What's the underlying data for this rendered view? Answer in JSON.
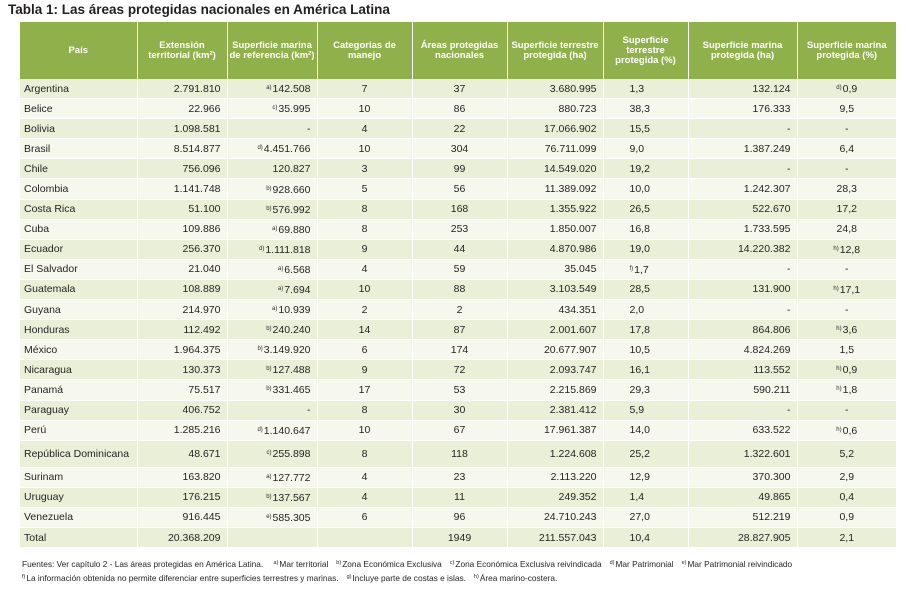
{
  "title": "Tabla 1: Las áreas protegidas nacionales en América Latina",
  "headers": [
    "País",
    "Extensión territorial (km²)",
    "Superficie marina de referencia (km²)",
    "Categorias de manejo",
    "Áreas protegidas nacionales",
    "Superficie terrestre protegida (ha)",
    "Superficie terrestre protegida (%)",
    "Superficie marina protegida (ha)",
    "Superficie marina protegida (%)"
  ],
  "rows": [
    {
      "pais": "Argentina",
      "ext": "2.791.810",
      "mar_note": "a)",
      "mar": "142.508",
      "cat": "7",
      "areas": "37",
      "ter_ha": "3.680.995",
      "ter_pct_note": "",
      "ter_pct": "1,3",
      "mar_ha": "132.124",
      "mar_pct_note": "d)",
      "mar_pct": "0,9"
    },
    {
      "pais": "Belice",
      "ext": "22.966",
      "mar_note": "c)",
      "mar": "35.995",
      "cat": "10",
      "areas": "86",
      "ter_ha": "880.723",
      "ter_pct_note": "",
      "ter_pct": "38,3",
      "mar_ha": "176.333",
      "mar_pct_note": "",
      "mar_pct": "9,5"
    },
    {
      "pais": "Bolivia",
      "ext": "1.098.581",
      "mar_note": "",
      "mar": "-",
      "cat": "4",
      "areas": "22",
      "ter_ha": "17.066.902",
      "ter_pct_note": "",
      "ter_pct": "15,5",
      "mar_ha": "-",
      "mar_pct_note": "",
      "mar_pct": "-"
    },
    {
      "pais": "Brasil",
      "ext": "8.514.877",
      "mar_note": "d)",
      "mar": "4.451.766",
      "cat": "10",
      "areas": "304",
      "ter_ha": "76.711.099",
      "ter_pct_note": "",
      "ter_pct": "9,0",
      "mar_ha": "1.387.249",
      "mar_pct_note": "",
      "mar_pct": "6,4"
    },
    {
      "pais": "Chile",
      "ext": "756.096",
      "mar_note": "",
      "mar": "120.827",
      "cat": "3",
      "areas": "99",
      "ter_ha": "14.549.020",
      "ter_pct_note": "",
      "ter_pct": "19,2",
      "mar_ha": "-",
      "mar_pct_note": "",
      "mar_pct": "-"
    },
    {
      "pais": "Colombia",
      "ext": "1.141.748",
      "mar_note": "b)",
      "mar": "928.660",
      "cat": "5",
      "areas": "56",
      "ter_ha": "11.389.092",
      "ter_pct_note": "",
      "ter_pct": "10,0",
      "mar_ha": "1.242.307",
      "mar_pct_note": "",
      "mar_pct": "28,3"
    },
    {
      "pais": "Costa Rica",
      "ext": "51.100",
      "mar_note": "b)",
      "mar": "576.992",
      "cat": "8",
      "areas": "168",
      "ter_ha": "1.355.922",
      "ter_pct_note": "",
      "ter_pct": "26,5",
      "mar_ha": "522.670",
      "mar_pct_note": "",
      "mar_pct": "17,2"
    },
    {
      "pais": "Cuba",
      "ext": "109.886",
      "mar_note": "a)",
      "mar": "69.880",
      "cat": "8",
      "areas": "253",
      "ter_ha": "1.850.007",
      "ter_pct_note": "",
      "ter_pct": "16,8",
      "mar_ha": "1.733.595",
      "mar_pct_note": "",
      "mar_pct": "24,8"
    },
    {
      "pais": "Ecuador",
      "ext": "256.370",
      "mar_note": "d)",
      "mar": "1.111.818",
      "cat": "9",
      "areas": "44",
      "ter_ha": "4.870.986",
      "ter_pct_note": "",
      "ter_pct": "19,0",
      "mar_ha": "14.220.382",
      "mar_pct_note": "h)",
      "mar_pct": "12,8"
    },
    {
      "pais": "El Salvador",
      "ext": "21.040",
      "mar_note": "a)",
      "mar": "6.568",
      "cat": "4",
      "areas": "59",
      "ter_ha": "35.045",
      "ter_pct_note": "f)",
      "ter_pct": "1,7",
      "mar_ha": "-",
      "mar_pct_note": "",
      "mar_pct": "-"
    },
    {
      "pais": "Guatemala",
      "ext": "108.889",
      "mar_note": "a)",
      "mar": "7.694",
      "cat": "10",
      "areas": "88",
      "ter_ha": "3.103.549",
      "ter_pct_note": "",
      "ter_pct": "28,5",
      "mar_ha": "131.900",
      "mar_pct_note": "h)",
      "mar_pct": "17,1"
    },
    {
      "pais": "Guyana",
      "ext": "214.970",
      "mar_note": "a)",
      "mar": "10.939",
      "cat": "2",
      "areas": "2",
      "ter_ha": "434.351",
      "ter_pct_note": "",
      "ter_pct": "2,0",
      "mar_ha": "-",
      "mar_pct_note": "",
      "mar_pct": "-"
    },
    {
      "pais": "Honduras",
      "ext": "112.492",
      "mar_note": "b)",
      "mar": "240.240",
      "cat": "14",
      "areas": "87",
      "ter_ha": "2.001.607",
      "ter_pct_note": "",
      "ter_pct": "17,8",
      "mar_ha": "864.806",
      "mar_pct_note": "h)",
      "mar_pct": "3,6"
    },
    {
      "pais": "México",
      "ext": "1.964.375",
      "mar_note": "b)",
      "mar": "3.149.920",
      "cat": "6",
      "areas": "174",
      "ter_ha": "20.677.907",
      "ter_pct_note": "",
      "ter_pct": "10,5",
      "mar_ha": "4.824.269",
      "mar_pct_note": "",
      "mar_pct": "1,5"
    },
    {
      "pais": "Nicaragua",
      "ext": "130.373",
      "mar_note": "b)",
      "mar": "127.488",
      "cat": "9",
      "areas": "72",
      "ter_ha": "2.093.747",
      "ter_pct_note": "",
      "ter_pct": "16,1",
      "mar_ha": "113.552",
      "mar_pct_note": "h)",
      "mar_pct": "0,9"
    },
    {
      "pais": "Panamá",
      "ext": "75.517",
      "mar_note": "b)",
      "mar": "331.465",
      "cat": "17",
      "areas": "53",
      "ter_ha": "2.215.869",
      "ter_pct_note": "",
      "ter_pct": "29,3",
      "mar_ha": "590.211",
      "mar_pct_note": "h)",
      "mar_pct": "1,8"
    },
    {
      "pais": "Paraguay",
      "ext": "406.752",
      "mar_note": "",
      "mar": "-",
      "cat": "8",
      "areas": "30",
      "ter_ha": "2.381.412",
      "ter_pct_note": "",
      "ter_pct": "5,9",
      "mar_ha": "-",
      "mar_pct_note": "",
      "mar_pct": "-"
    },
    {
      "pais": "Perú",
      "ext": "1.285.216",
      "mar_note": "d)",
      "mar": "1.140.647",
      "cat": "10",
      "areas": "67",
      "ter_ha": "17.961.387",
      "ter_pct_note": "",
      "ter_pct": "14,0",
      "mar_ha": "633.522",
      "mar_pct_note": "h)",
      "mar_pct": "0,6"
    },
    {
      "pais": "República Dominicana",
      "ext": "48.671",
      "mar_note": "c)",
      "mar": "255.898",
      "cat": "8",
      "areas": "118",
      "ter_ha": "1.224.608",
      "ter_pct_note": "",
      "ter_pct": "25,2",
      "mar_ha": "1.322.601",
      "mar_pct_note": "",
      "mar_pct": "5,2"
    },
    {
      "pais": "Surinam",
      "ext": "163.820",
      "mar_note": "a)",
      "mar": "127.772",
      "cat": "4",
      "areas": "23",
      "ter_ha": "2.113.220",
      "ter_pct_note": "",
      "ter_pct": "12,9",
      "mar_ha": "370.300",
      "mar_pct_note": "",
      "mar_pct": "2,9"
    },
    {
      "pais": "Uruguay",
      "ext": "176.215",
      "mar_note": "b)",
      "mar": "137.567",
      "cat": "4",
      "areas": "11",
      "ter_ha": "249.352",
      "ter_pct_note": "",
      "ter_pct": "1,4",
      "mar_ha": "49.865",
      "mar_pct_note": "",
      "mar_pct": "0,4"
    },
    {
      "pais": "Venezuela",
      "ext": "916.445",
      "mar_note": "e)",
      "mar": "585.305",
      "cat": "6",
      "areas": "96",
      "ter_ha": "24.710.243",
      "ter_pct_note": "",
      "ter_pct": "27,0",
      "mar_ha": "512.219",
      "mar_pct_note": "",
      "mar_pct": "0,9"
    }
  ],
  "total": {
    "pais": "Total",
    "ext": "20.368.209",
    "mar": "",
    "cat": "",
    "areas": "1949",
    "ter_ha": "211.557.043",
    "ter_pct": "10,4",
    "mar_ha": "28.827.905",
    "mar_pct": "2,1"
  },
  "footnotes": {
    "line1_source": "Fuentes: Ver capítulo 2 - Las áreas protegidas en América Latina.",
    "notes_line1": [
      {
        "mark": "a)",
        "text": "Mar territorial"
      },
      {
        "mark": "b)",
        "text": "Zona Económica Exclusiva"
      },
      {
        "mark": "c)",
        "text": "Zona Económica Exclusiva reivindicada"
      },
      {
        "mark": "d)",
        "text": "Mar Patrimonial"
      },
      {
        "mark": "e)",
        "text": "Mar Patrimonial reivindicado"
      }
    ],
    "notes_line2": [
      {
        "mark": "f)",
        "text": "La información obtenida no permite diferenciar entre superficies terrestres y marinas."
      },
      {
        "mark": "g)",
        "text": "Incluye parte de costas e islas."
      },
      {
        "mark": "h)",
        "text": "Área marino-costera."
      }
    ]
  },
  "colors": {
    "header_bg": "#8fb04a",
    "row_odd": "#eaf0d8",
    "row_even": "#f6f8ed"
  }
}
